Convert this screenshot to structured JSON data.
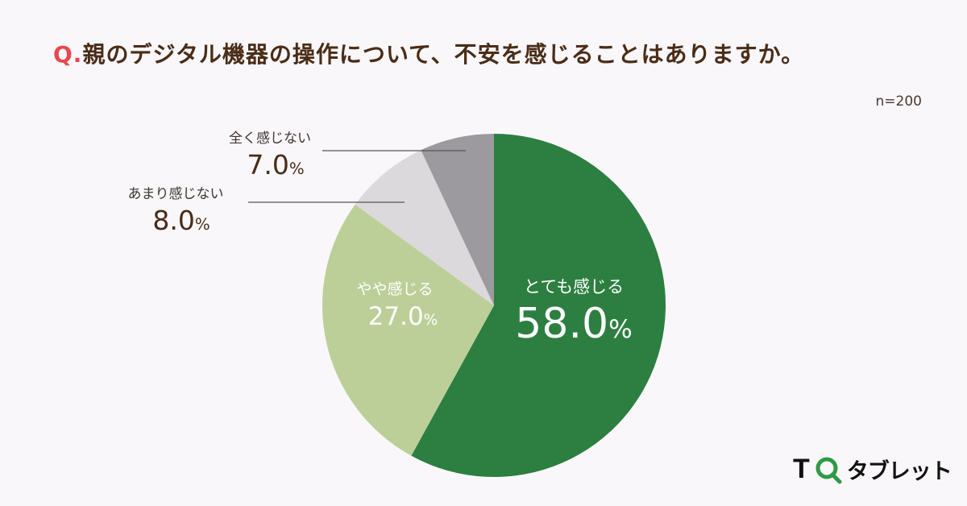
{
  "title": {
    "prefix": "Q.",
    "text": "親のデジタル機器の操作について、不安を感じることはありますか。"
  },
  "sample_size": "n=200",
  "labels": [
    {
      "category": "とても感じる",
      "value": "58.0",
      "unit": "%"
    },
    {
      "category": "やや感じる",
      "value": "27.0",
      "unit": "%"
    },
    {
      "category": "あまり感じない",
      "value": "8.0",
      "unit": "%"
    },
    {
      "category": "全く感じない",
      "value": "7.0",
      "unit": "%"
    }
  ],
  "logo": {
    "t": "T",
    "katakana": "タブレット"
  },
  "colors": {
    "very": "#2c7f40",
    "somewhat": "#bccf98",
    "not_much": "#dcd9dd",
    "not_at_all": "#9c9a9e",
    "title_q": "#e8474f",
    "title_text": "#4a2c17"
  },
  "chart_data": {
    "type": "pie",
    "title": "Q.親のデジタル機器の操作について、不安を感じることはありますか。",
    "categories": [
      "とても感じる",
      "やや感じる",
      "あまり感じない",
      "全く感じない"
    ],
    "values": [
      58.0,
      27.0,
      8.0,
      7.0
    ],
    "unit": "%",
    "n": 200,
    "start_angle": "12 o'clock",
    "direction": "clockwise",
    "colors": [
      "#2c7f40",
      "#bccf98",
      "#dcd9dd",
      "#9c9a9e"
    ],
    "legend": "none (direct labels)"
  }
}
